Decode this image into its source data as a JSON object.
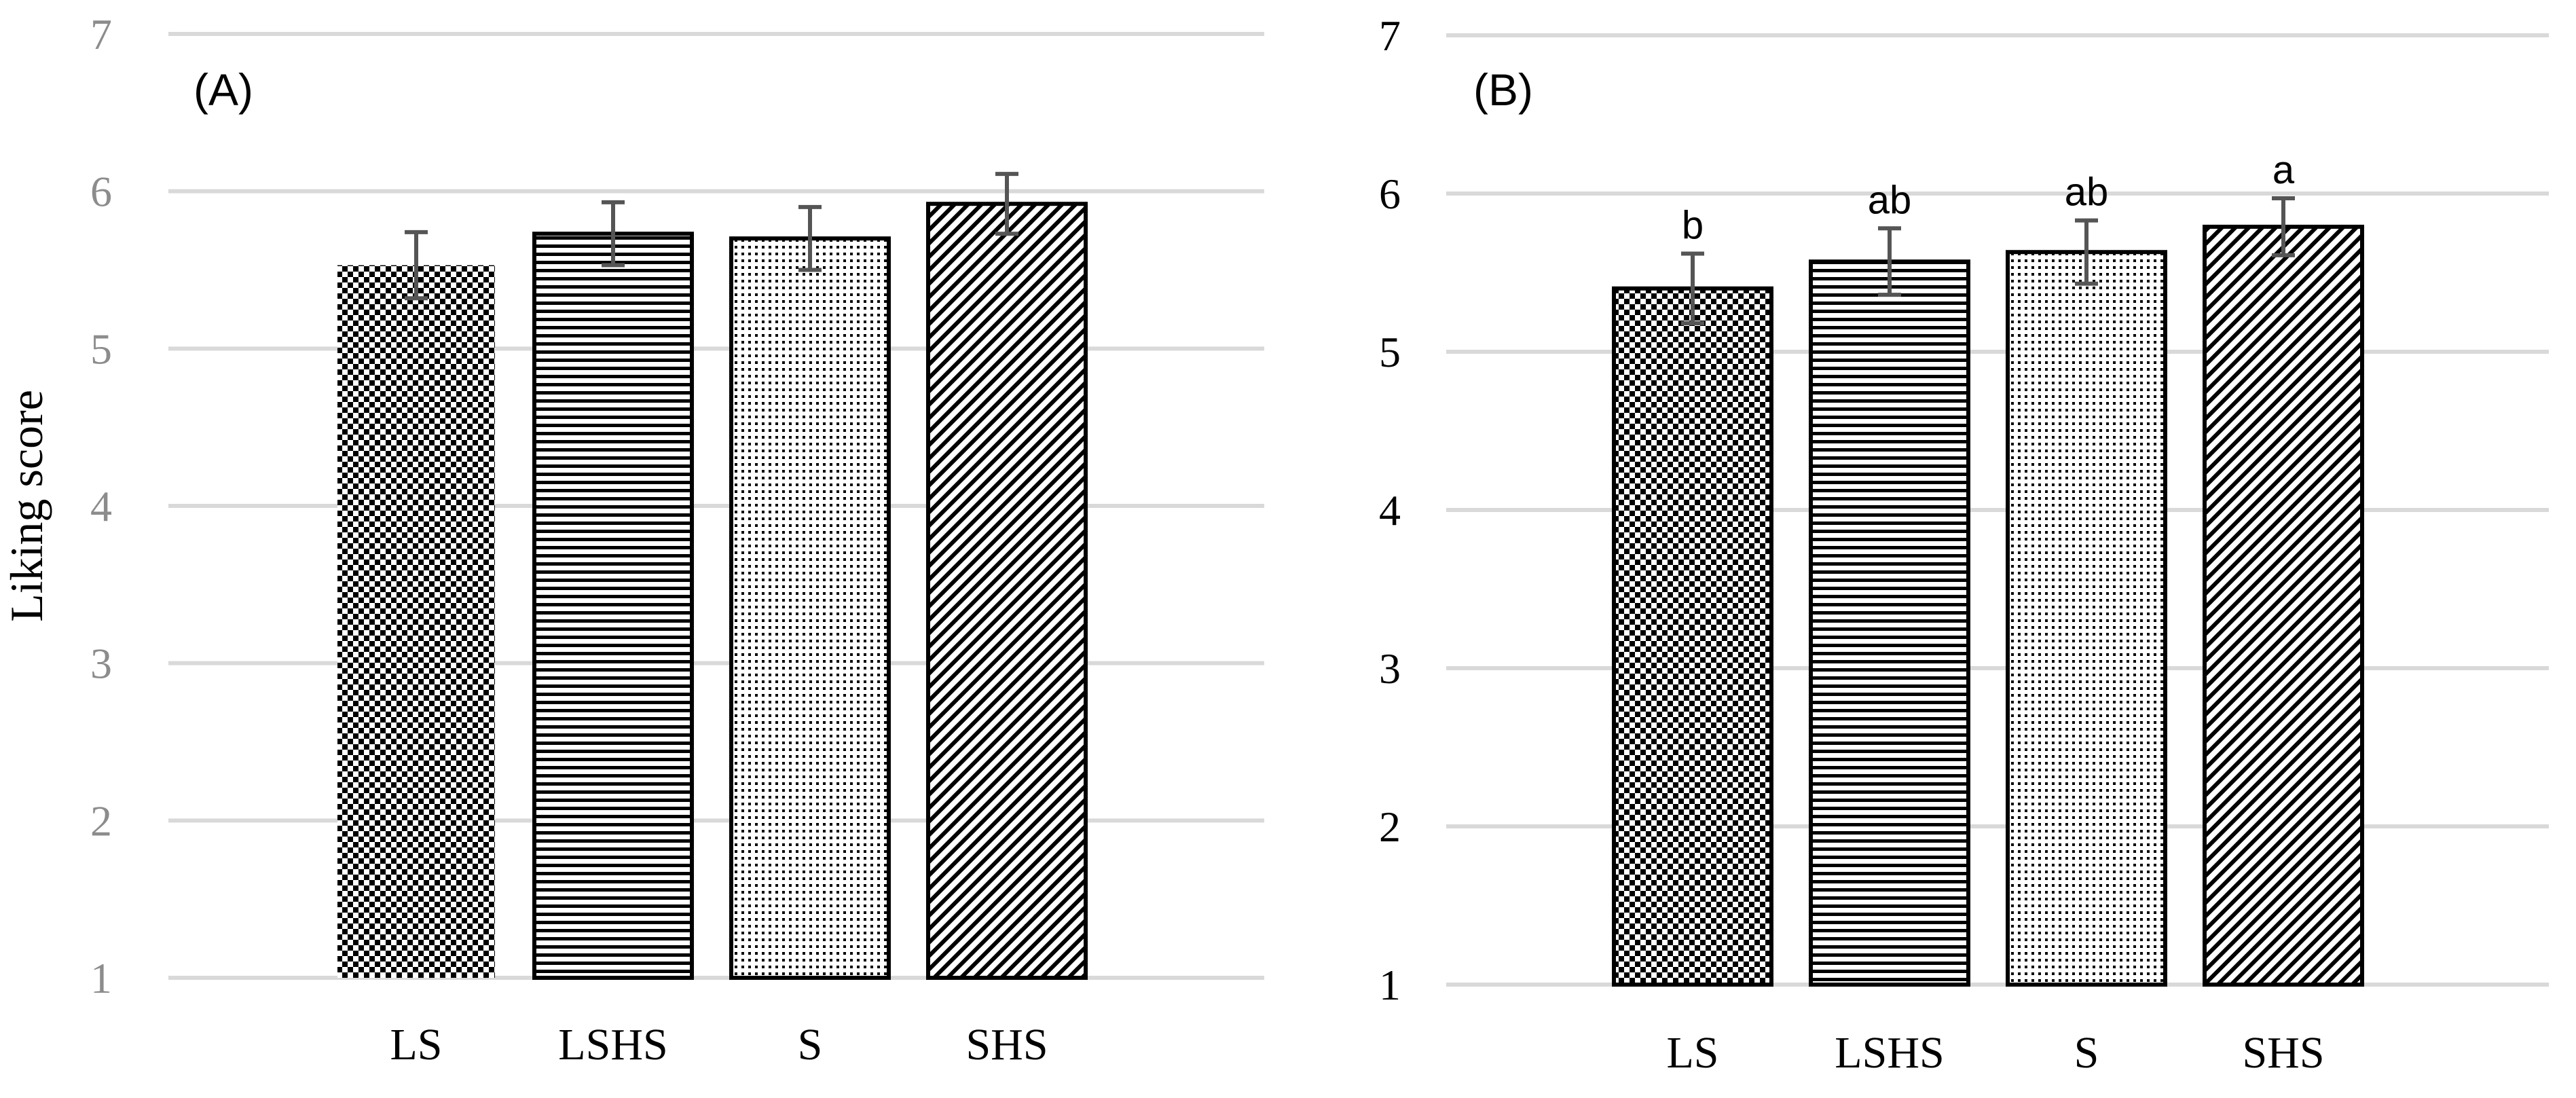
{
  "chart_data": [
    {
      "type": "bar",
      "panel_label": "(A)",
      "categories": [
        "LS",
        "LSHS",
        "S",
        "SHS"
      ],
      "values": [
        5.53,
        5.73,
        5.7,
        5.92
      ],
      "error": [
        0.21,
        0.2,
        0.2,
        0.19
      ],
      "patterns": [
        "checker",
        "horizontal",
        "dots",
        "diagonal"
      ],
      "significance_labels": [
        "",
        "",
        "",
        ""
      ],
      "ylabel": "Liking score",
      "ylim": [
        1,
        7
      ],
      "yticks": [
        "1",
        "2",
        "3",
        "4",
        "5",
        "6",
        "7"
      ],
      "grid": true,
      "tick_color": "#8c8c8c"
    },
    {
      "type": "bar",
      "panel_label": "(B)",
      "categories": [
        "LS",
        "LSHS",
        "S",
        "SHS"
      ],
      "values": [
        5.4,
        5.57,
        5.63,
        5.79
      ],
      "error": [
        0.22,
        0.21,
        0.2,
        0.18
      ],
      "patterns": [
        "checker",
        "horizontal",
        "dots",
        "diagonal"
      ],
      "significance_labels": [
        "b",
        "ab",
        "ab",
        "a"
      ],
      "ylabel": "",
      "ylim": [
        1,
        7
      ],
      "yticks": [
        "1",
        "2",
        "3",
        "4",
        "5",
        "6",
        "7"
      ],
      "grid": true,
      "tick_color": "#000000"
    }
  ],
  "colors": {
    "gridline": "#d9d9d9",
    "bar_outline": "#000000",
    "error_bar": "#555555",
    "pattern_ink": "#000000"
  }
}
